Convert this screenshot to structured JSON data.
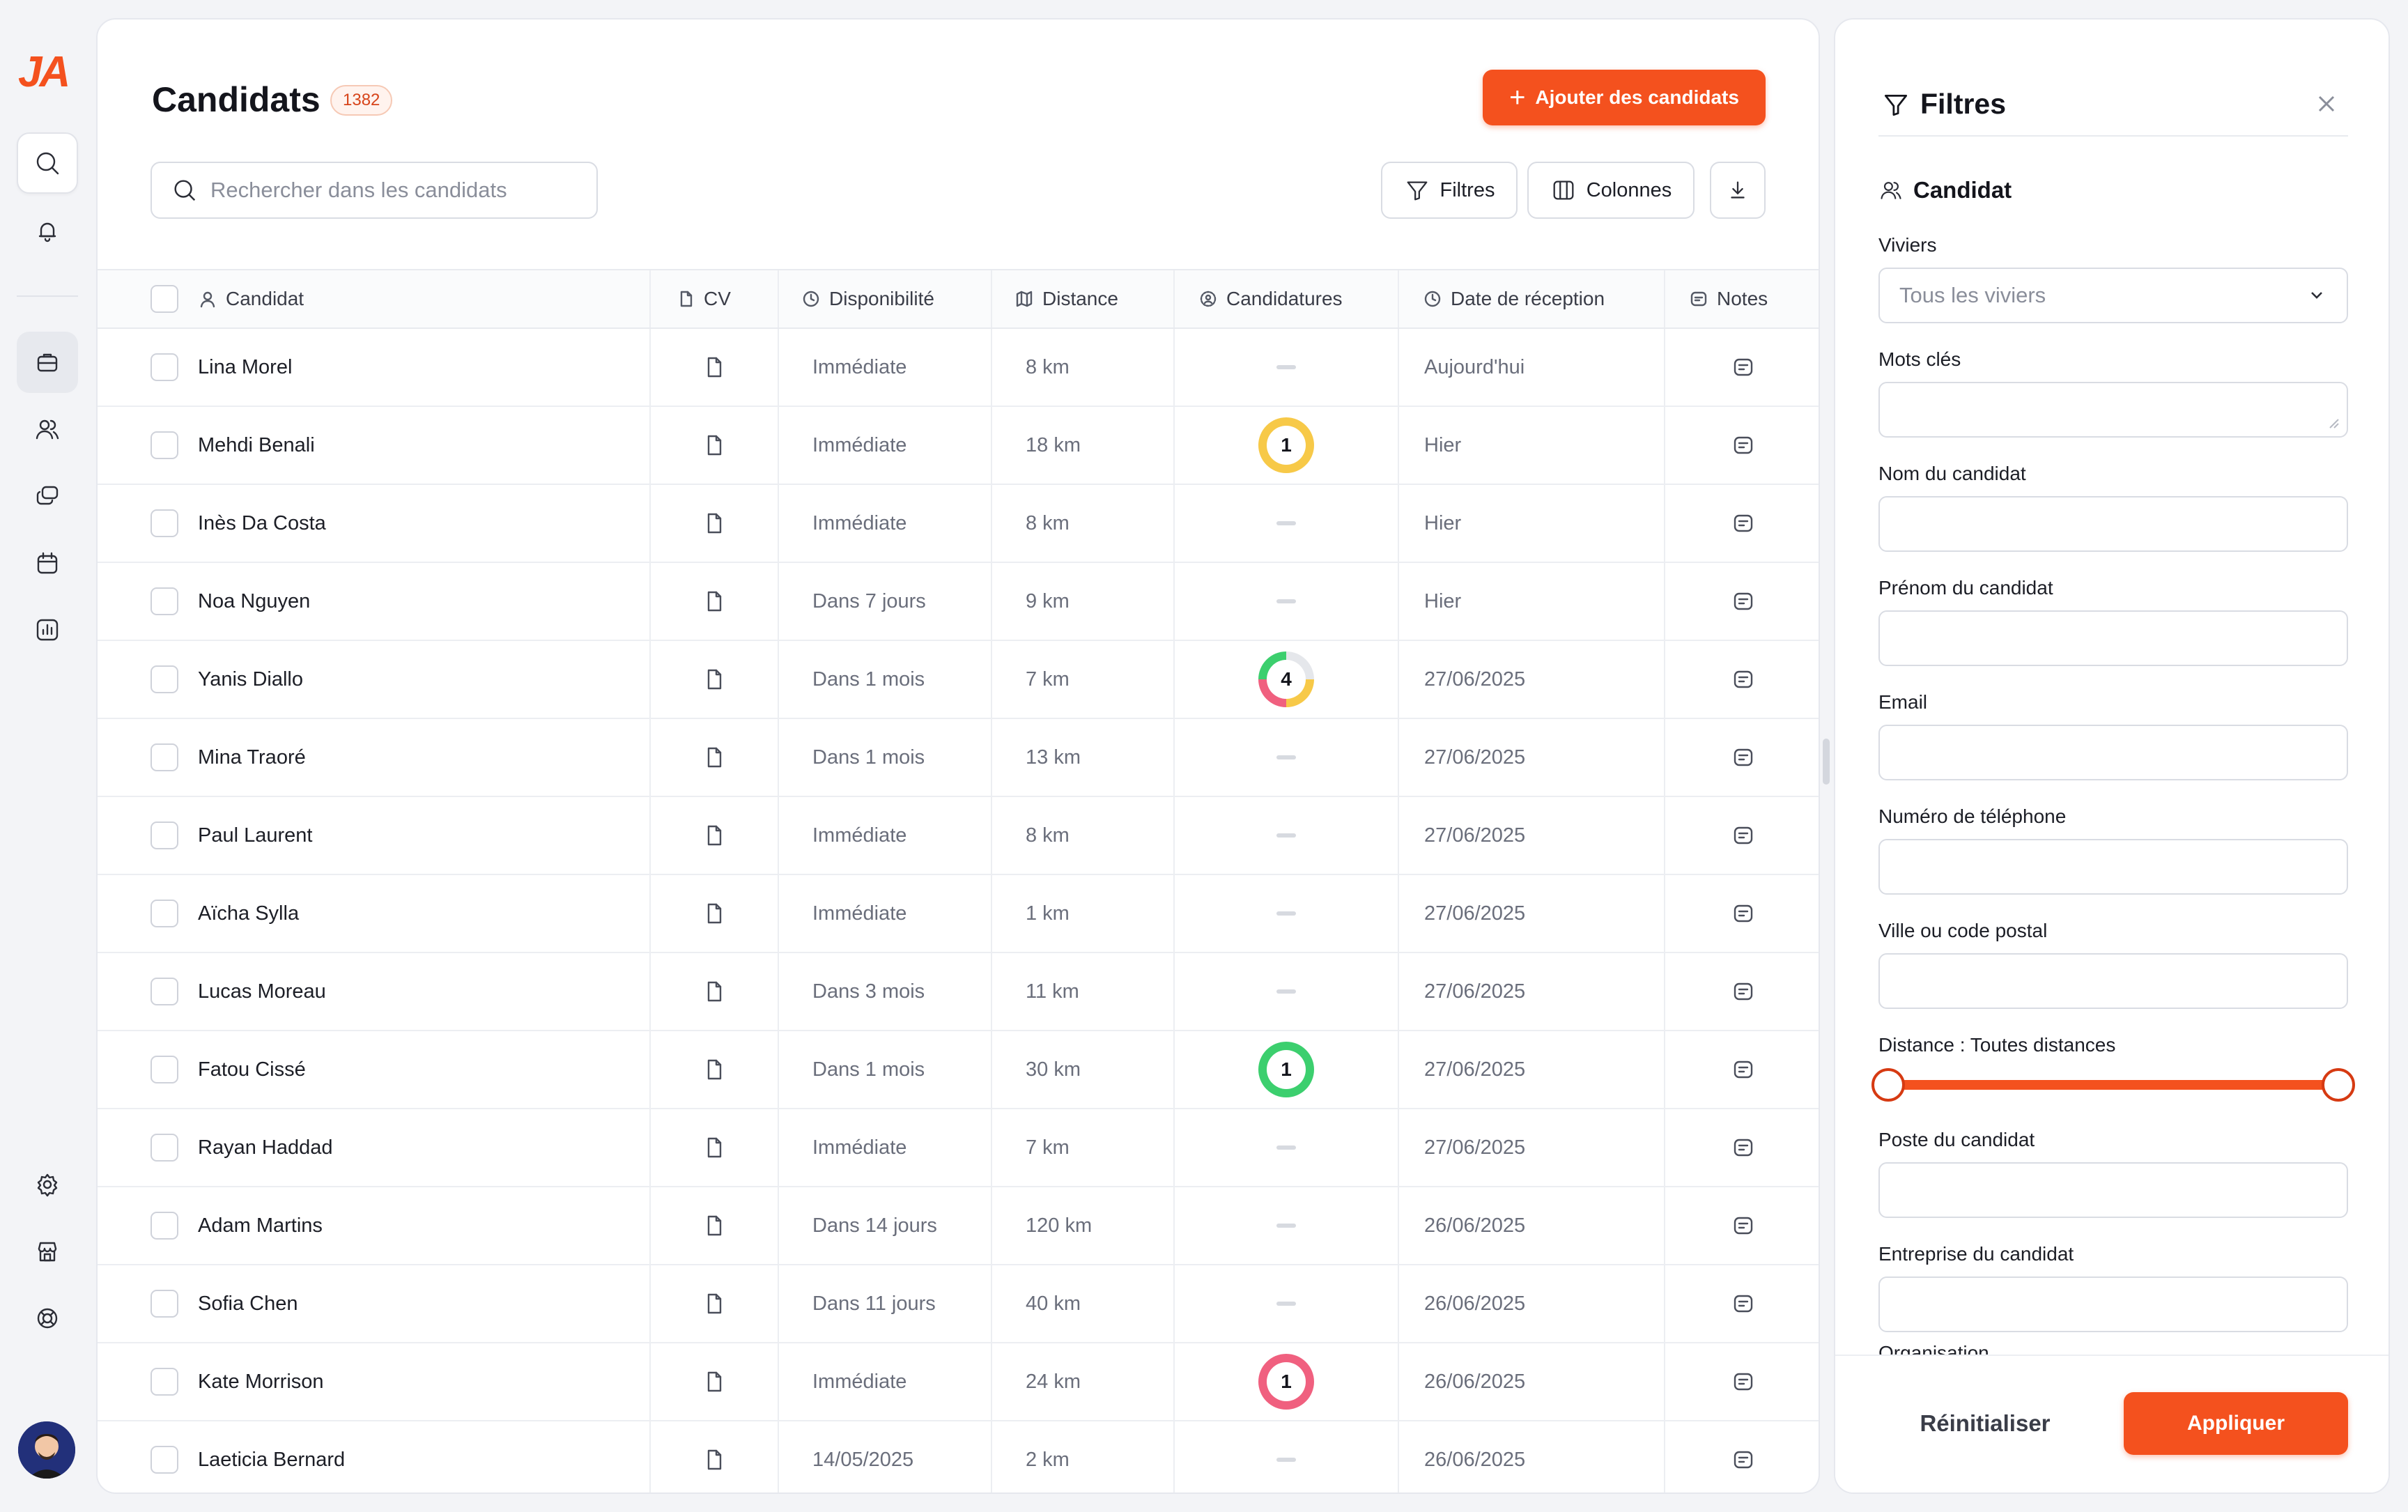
{
  "app": {
    "logo": "JA"
  },
  "header": {
    "title": "Candidats",
    "count": "1382",
    "add_label": "Ajouter des candidats",
    "search_placeholder": "Rechercher dans les candidats",
    "filters_label": "Filtres",
    "columns_label": "Colonnes"
  },
  "table": {
    "columns": [
      "Candidat",
      "CV",
      "Disponibilité",
      "Distance",
      "Candidatures",
      "Date de réception",
      "Notes"
    ],
    "rows": [
      {
        "name": "Lina Morel",
        "dispo": "Immédiate",
        "distance": "8 km",
        "candidatures": null,
        "date": "Aujourd'hui"
      },
      {
        "name": "Mehdi Benali",
        "dispo": "Immédiate",
        "distance": "18 km",
        "candidatures": "1",
        "ring": "yellow",
        "date": "Hier"
      },
      {
        "name": "Inès Da Costa",
        "dispo": "Immédiate",
        "distance": "8 km",
        "candidatures": null,
        "date": "Hier"
      },
      {
        "name": "Noa Nguyen",
        "dispo": "Dans 7 jours",
        "distance": "9 km",
        "candidatures": null,
        "date": "Hier"
      },
      {
        "name": "Yanis Diallo",
        "dispo": "Dans 1 mois",
        "distance": "7 km",
        "candidatures": "4",
        "ring": "multi",
        "date": "27/06/2025"
      },
      {
        "name": "Mina Traoré",
        "dispo": "Dans 1 mois",
        "distance": "13 km",
        "candidatures": null,
        "date": "27/06/2025"
      },
      {
        "name": "Paul Laurent",
        "dispo": "Immédiate",
        "distance": "8 km",
        "candidatures": null,
        "date": "27/06/2025"
      },
      {
        "name": "Aïcha Sylla",
        "dispo": "Immédiate",
        "distance": "1 km",
        "candidatures": null,
        "date": "27/06/2025"
      },
      {
        "name": "Lucas Moreau",
        "dispo": "Dans 3 mois",
        "distance": "11 km",
        "candidatures": null,
        "date": "27/06/2025"
      },
      {
        "name": "Fatou Cissé",
        "dispo": "Dans 1 mois",
        "distance": "30 km",
        "candidatures": "1",
        "ring": "green",
        "date": "27/06/2025"
      },
      {
        "name": "Rayan Haddad",
        "dispo": "Immédiate",
        "distance": "7 km",
        "candidatures": null,
        "date": "27/06/2025"
      },
      {
        "name": "Adam Martins",
        "dispo": "Dans 14 jours",
        "distance": "120 km",
        "candidatures": null,
        "date": "26/06/2025"
      },
      {
        "name": "Sofia Chen",
        "dispo": "Dans 11 jours",
        "distance": "40 km",
        "candidatures": null,
        "date": "26/06/2025"
      },
      {
        "name": "Kate Morrison",
        "dispo": "Immédiate",
        "distance": "24 km",
        "candidatures": "1",
        "ring": "pink",
        "date": "26/06/2025"
      },
      {
        "name": "Laeticia Bernard",
        "dispo": "14/05/2025",
        "distance": "2 km",
        "candidatures": null,
        "date": "26/06/2025"
      }
    ]
  },
  "filters": {
    "title": "Filtres",
    "section": "Candidat",
    "fields": {
      "viviers_label": "Viviers",
      "viviers_value": "Tous les viviers",
      "keywords_label": "Mots clés",
      "lastname_label": "Nom du candidat",
      "firstname_label": "Prénom du candidat",
      "email_label": "Email",
      "phone_label": "Numéro de téléphone",
      "city_label": "Ville ou code postal",
      "distance_label": "Distance : Toutes distances",
      "position_label": "Poste du candidat",
      "company_label": "Entreprise du candidat",
      "org_label": "Organisation"
    },
    "distance_range": [
      0,
      1
    ],
    "reset_label": "Réinitialiser",
    "apply_label": "Appliquer"
  },
  "colors": {
    "accent": "#f4511e",
    "ring_yellow": "#f7c948",
    "ring_green": "#3ccf6e",
    "ring_pink": "#f0607f"
  }
}
